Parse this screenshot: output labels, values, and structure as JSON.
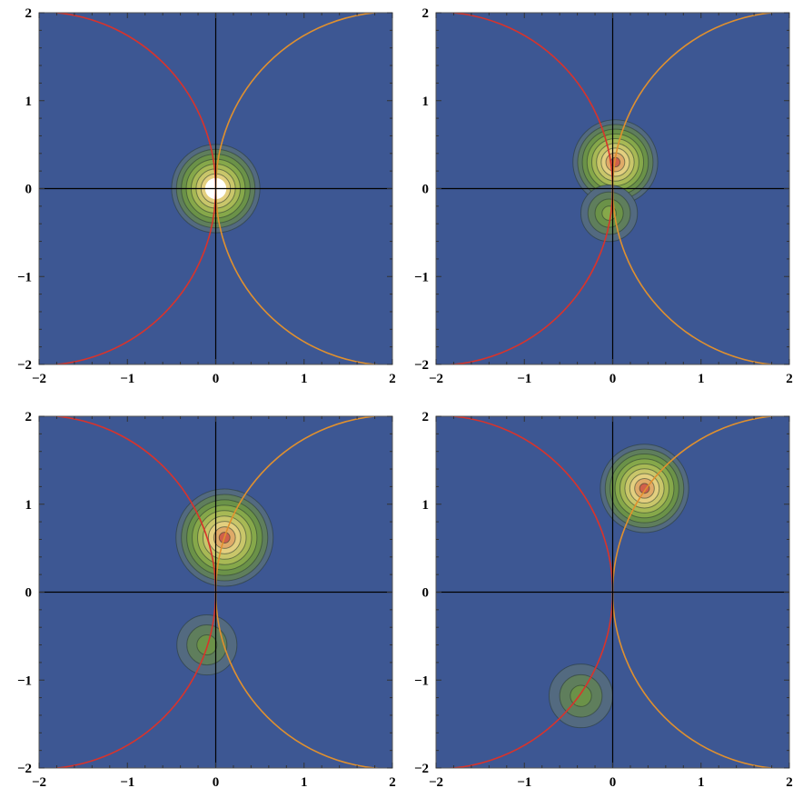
{
  "chart_data": [
    {
      "type": "contour",
      "panel": "top-left",
      "xlim": [
        -2,
        2
      ],
      "ylim": [
        -2,
        2
      ],
      "x_ticks": [
        -2,
        -1,
        0,
        1,
        2
      ],
      "y_ticks": [
        -2,
        -1,
        0,
        1,
        2
      ],
      "tick_labels_x": [
        "−2",
        "−1",
        "0",
        "1",
        "2"
      ],
      "tick_labels_y": [
        "−2",
        "−1",
        "0",
        "1",
        "2"
      ],
      "blobs": [
        {
          "center": [
            0.0,
            0.0
          ],
          "extent_radius": 0.5,
          "peak": 1.0,
          "saturated_core": true,
          "core_radius": 0.12
        }
      ],
      "curves": [
        {
          "color": "#d9332b",
          "arc": "circle",
          "center": [
            -2,
            0
          ],
          "radius": 2
        },
        {
          "color": "#e0902e",
          "arc": "circle",
          "center": [
            2,
            0
          ],
          "radius": 2
        }
      ]
    },
    {
      "type": "contour",
      "panel": "top-right",
      "xlim": [
        -2,
        2
      ],
      "ylim": [
        -2,
        2
      ],
      "x_ticks": [
        -2,
        -1,
        0,
        1,
        2
      ],
      "y_ticks": [
        -2,
        -1,
        0,
        1,
        2
      ],
      "tick_labels_x": [
        "−2",
        "−1",
        "0",
        "1",
        "2"
      ],
      "tick_labels_y": [
        "−2",
        "−1",
        "0",
        "1",
        "2"
      ],
      "blobs": [
        {
          "center": [
            0.03,
            0.3
          ],
          "extent_radius": 0.48,
          "peak": 0.95
        },
        {
          "center": [
            -0.04,
            -0.28
          ],
          "extent_radius": 0.32,
          "peak": 0.4
        }
      ],
      "curves": [
        {
          "color": "#d9332b",
          "arc": "circle",
          "center": [
            -2,
            0
          ],
          "radius": 2
        },
        {
          "color": "#e0902e",
          "arc": "circle",
          "center": [
            2,
            0
          ],
          "radius": 2
        }
      ]
    },
    {
      "type": "contour",
      "panel": "bottom-left",
      "xlim": [
        -2,
        2
      ],
      "ylim": [
        -2,
        2
      ],
      "x_ticks": [
        -2,
        -1,
        0,
        1,
        2
      ],
      "y_ticks": [
        -2,
        -1,
        0,
        1,
        2
      ],
      "tick_labels_x": [
        "−2",
        "−1",
        "0",
        "1",
        "2"
      ],
      "tick_labels_y": [
        "−2",
        "−1",
        "0",
        "1",
        "2"
      ],
      "blobs": [
        {
          "center": [
            0.1,
            0.62
          ],
          "extent_radius": 0.55,
          "peak": 0.95
        },
        {
          "center": [
            -0.1,
            -0.6
          ],
          "extent_radius": 0.34,
          "peak": 0.38
        }
      ],
      "curves": [
        {
          "color": "#d9332b",
          "arc": "circle",
          "center": [
            -2,
            0
          ],
          "radius": 2
        },
        {
          "color": "#e0902e",
          "arc": "circle",
          "center": [
            2,
            0
          ],
          "radius": 2
        }
      ]
    },
    {
      "type": "contour",
      "panel": "bottom-right",
      "xlim": [
        -2,
        2
      ],
      "ylim": [
        -2,
        2
      ],
      "x_ticks": [
        -2,
        -1,
        0,
        1,
        2
      ],
      "y_ticks": [
        -2,
        -1,
        0,
        1,
        2
      ],
      "tick_labels_x": [
        "−2",
        "−1",
        "0",
        "1",
        "2"
      ],
      "tick_labels_y": [
        "−2",
        "−1",
        "0",
        "1",
        "2"
      ],
      "blobs": [
        {
          "center": [
            0.36,
            1.18
          ],
          "extent_radius": 0.5,
          "peak": 0.95
        },
        {
          "center": [
            -0.36,
            -1.18
          ],
          "extent_radius": 0.36,
          "peak": 0.36
        }
      ],
      "curves": [
        {
          "color": "#d9332b",
          "arc": "circle",
          "center": [
            -2,
            0
          ],
          "radius": 2
        },
        {
          "color": "#e0902e",
          "arc": "circle",
          "center": [
            2,
            0
          ],
          "radius": 2
        }
      ]
    }
  ],
  "colors": {
    "background": "#3d5793",
    "axis_lines": "#000000",
    "contour_line": "#2a3b2f",
    "levels": [
      "#536a80",
      "#5f7e5c",
      "#6b9248",
      "#86a84a",
      "#a8b955",
      "#c9c66a",
      "#e3cf7f",
      "#e0aa68",
      "#d0604a"
    ]
  }
}
